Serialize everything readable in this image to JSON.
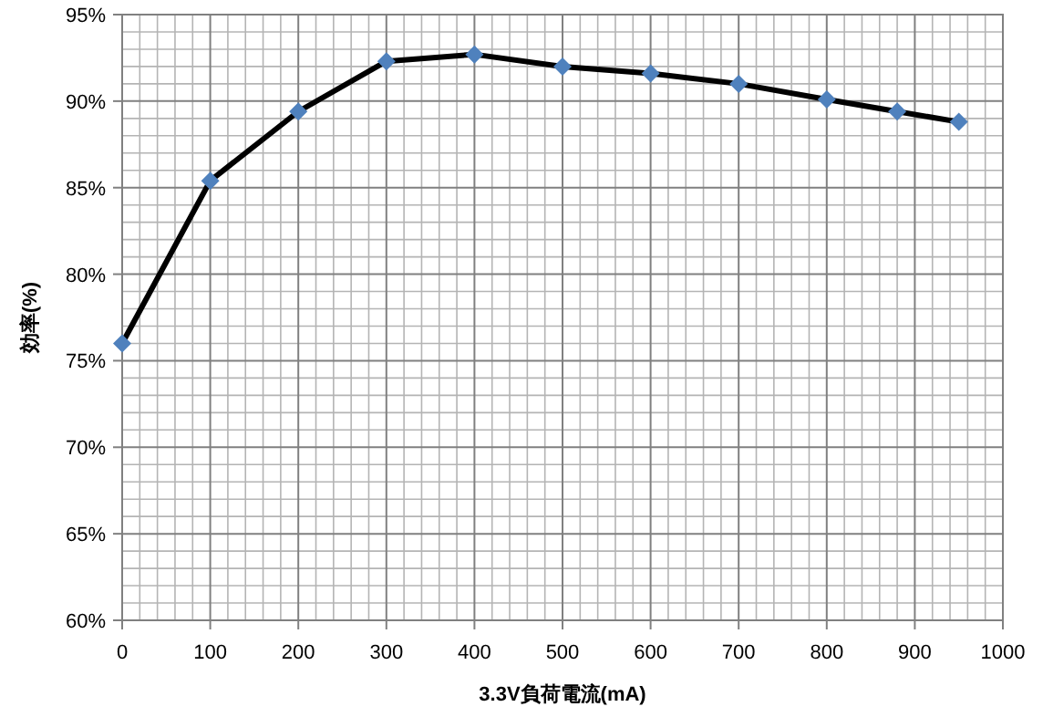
{
  "chart_data": {
    "type": "line",
    "xlabel": "3.3V負荷電流(mA)",
    "ylabel": "効率(%)",
    "x": [
      0,
      100,
      200,
      300,
      400,
      500,
      600,
      700,
      800,
      880,
      950
    ],
    "series": [
      {
        "color": "#000000",
        "values": [
          76.0,
          85.4,
          89.4,
          92.3,
          92.7,
          92.0,
          91.6,
          91.0,
          90.1,
          89.4,
          88.8
        ]
      }
    ],
    "marker": "diamond",
    "line_style": "solid",
    "grid": true,
    "xlim": [
      0,
      1000
    ],
    "xticks": [
      0,
      100,
      200,
      300,
      400,
      500,
      600,
      700,
      800,
      900,
      1000
    ],
    "ylim": [
      60,
      95
    ],
    "yticks": [
      {
        "value": 60,
        "label": "60%"
      },
      {
        "value": 65,
        "label": "65%"
      },
      {
        "value": 70,
        "label": "70%"
      },
      {
        "value": 75,
        "label": "75%"
      },
      {
        "value": 80,
        "label": "80%"
      },
      {
        "value": 85,
        "label": "85%"
      },
      {
        "value": 90,
        "label": "90%"
      },
      {
        "value": 95,
        "label": "95%"
      }
    ]
  }
}
